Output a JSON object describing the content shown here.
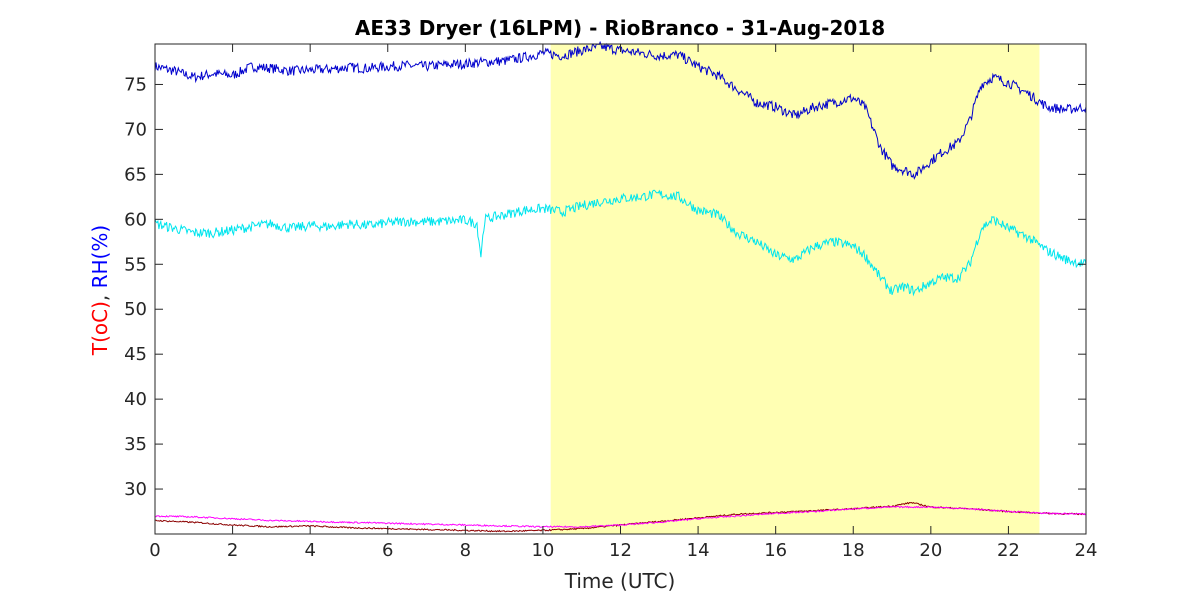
{
  "chart_data": {
    "type": "line",
    "title": "AE33 Dryer (16LPM)  - RioBranco - 31-Aug-2018",
    "xlabel": "Time (UTC)",
    "ylabel_parts": [
      {
        "text": "T(oC)",
        "color": "#ff0000"
      },
      {
        "text": ", ",
        "color": "#262626"
      },
      {
        "text": "RH(%)",
        "color": "#0000ff"
      }
    ],
    "xlim": [
      0,
      24
    ],
    "ylim": [
      25,
      79.5
    ],
    "xticks": [
      0,
      2,
      4,
      6,
      8,
      10,
      12,
      14,
      16,
      18,
      20,
      22,
      24
    ],
    "yticks": [
      30,
      35,
      40,
      45,
      50,
      55,
      60,
      65,
      70,
      75
    ],
    "grid": false,
    "shaded_region": {
      "x_start": 10.2,
      "x_end": 22.8,
      "color": "#ffffb3"
    },
    "series": [
      {
        "color": "#0000cd",
        "x": [
          0,
          0.5,
          1,
          1.5,
          2,
          2.5,
          3,
          3.5,
          4,
          4.5,
          5,
          5.5,
          6,
          6.5,
          7,
          7.5,
          8,
          8.5,
          9,
          9.5,
          10,
          10.5,
          11,
          11.5,
          12,
          12.5,
          13,
          13.5,
          14,
          14.5,
          15,
          15.5,
          16,
          16.5,
          17,
          17.5,
          18,
          18.3,
          18.7,
          19,
          19.3,
          19.6,
          20,
          20.3,
          20.7,
          21,
          21.3,
          21.6,
          22,
          22.5,
          23,
          23.5,
          24
        ],
        "y": [
          77,
          76.5,
          75.8,
          76.2,
          76.0,
          77.0,
          76.8,
          76.5,
          76.6,
          76.7,
          76.9,
          76.8,
          77.0,
          77.1,
          77.0,
          77.2,
          77.3,
          77.5,
          77.6,
          78.0,
          78.5,
          78.2,
          78.8,
          79.2,
          78.8,
          78.5,
          78.2,
          78.3,
          77.0,
          76.0,
          74.5,
          73.0,
          72.5,
          71.5,
          72.5,
          73.0,
          73.5,
          72.5,
          68.0,
          66.0,
          65.5,
          65.0,
          66.5,
          67.5,
          68.5,
          71.0,
          75.0,
          75.8,
          75.2,
          74.0,
          72.5,
          72.2,
          72.5
        ]
      },
      {
        "color": "#00e5ee",
        "x": [
          0,
          0.5,
          1,
          1.5,
          2,
          2.5,
          3,
          3.5,
          4,
          4.5,
          5,
          5.5,
          6,
          6.5,
          7,
          7.5,
          8,
          8.3,
          8.4,
          8.5,
          9,
          9.5,
          10,
          10.5,
          11,
          11.5,
          12,
          12.5,
          13,
          13.5,
          14,
          14.5,
          15,
          15.5,
          16,
          16.5,
          17,
          17.5,
          18,
          18.3,
          18.7,
          19,
          19.3,
          19.6,
          20,
          20.3,
          20.7,
          21,
          21.3,
          21.6,
          22,
          22.5,
          23,
          23.5,
          24
        ],
        "y": [
          59.5,
          59.0,
          58.5,
          58.5,
          58.8,
          59.2,
          59.5,
          59.0,
          59.3,
          59.2,
          59.5,
          59.3,
          59.6,
          59.8,
          59.7,
          59.8,
          59.9,
          59.5,
          56.0,
          60.0,
          60.5,
          61.0,
          61.2,
          60.8,
          61.5,
          62.0,
          62.3,
          62.5,
          62.8,
          62.5,
          61.0,
          60.5,
          58.5,
          57.5,
          56.0,
          55.5,
          57.0,
          57.5,
          57.0,
          56.0,
          53.5,
          52.0,
          52.5,
          52.0,
          53.0,
          53.5,
          53.5,
          55.0,
          59.0,
          60.0,
          59.0,
          58.0,
          56.5,
          55.5,
          55.0
        ]
      },
      {
        "color": "#8b0000",
        "x": [
          0,
          1,
          2,
          3,
          4,
          5,
          6,
          7,
          8,
          9,
          10,
          11,
          12,
          13,
          14,
          15,
          16,
          17,
          18,
          19,
          19.5,
          20,
          21,
          22,
          23,
          24
        ],
        "y": [
          26.5,
          26.3,
          26.0,
          25.8,
          25.9,
          25.7,
          25.6,
          25.5,
          25.4,
          25.3,
          25.4,
          25.6,
          26.0,
          26.4,
          26.8,
          27.2,
          27.4,
          27.6,
          27.8,
          28.1,
          28.5,
          28.0,
          27.8,
          27.5,
          27.3,
          27.2
        ]
      },
      {
        "color": "#ff00ff",
        "x": [
          0,
          1,
          2,
          3,
          4,
          5,
          6,
          7,
          8,
          9,
          10,
          11,
          12,
          13,
          14,
          15,
          16,
          17,
          18,
          19,
          20,
          21,
          22,
          23,
          24
        ],
        "y": [
          27.0,
          26.9,
          26.7,
          26.5,
          26.4,
          26.3,
          26.2,
          26.1,
          26.0,
          25.9,
          25.8,
          25.8,
          26.0,
          26.3,
          26.7,
          27.0,
          27.3,
          27.5,
          27.8,
          28.0,
          28.0,
          27.8,
          27.5,
          27.3,
          27.2
        ]
      }
    ]
  }
}
